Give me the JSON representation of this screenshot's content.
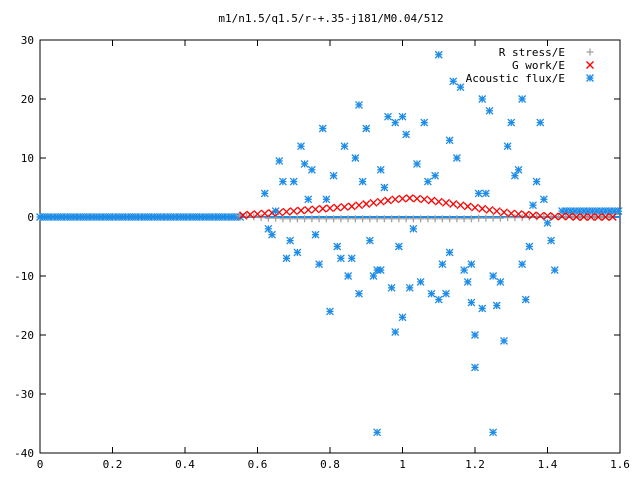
{
  "chart_data": {
    "type": "scatter",
    "title": "m1/n1.5/q1.5/r-+.35-j181/M0.04/512",
    "xlabel": "",
    "ylabel": "",
    "xlim": [
      0,
      1.6
    ],
    "ylim": [
      -40,
      30
    ],
    "xticks": [
      "0",
      "0.2",
      "0.4",
      "0.6",
      "0.8",
      "1",
      "1.2",
      "1.4",
      "1.6"
    ],
    "yticks": [
      "30",
      "20",
      "10",
      "0",
      "-10",
      "-20",
      "-30",
      "-40"
    ],
    "legend_position": "top-right",
    "series": [
      {
        "name": "R stress/E",
        "marker": "+",
        "color": "#a0a0a0",
        "x": [
          0.55,
          0.57,
          0.59,
          0.61,
          0.63,
          0.65,
          0.67,
          0.69,
          0.71,
          0.73,
          0.75,
          0.77,
          0.79,
          0.81,
          0.83,
          0.85,
          0.87,
          0.89,
          0.91,
          0.93,
          0.95,
          0.97,
          0.99,
          1.01,
          1.03,
          1.05,
          1.07,
          1.09,
          1.11,
          1.13,
          1.15,
          1.17,
          1.19,
          1.21,
          1.23,
          1.25,
          1.27,
          1.29,
          1.31,
          1.33,
          1.35,
          1.37,
          1.39,
          1.41,
          1.43,
          1.45,
          1.47,
          1.49,
          1.51,
          1.53,
          1.55,
          1.57
        ],
        "y": [
          0.2,
          0.1,
          0,
          -0.1,
          -0.2,
          -0.2,
          -0.3,
          -0.3,
          -0.3,
          -0.3,
          -0.3,
          -0.3,
          -0.3,
          -0.3,
          -0.3,
          -0.3,
          -0.3,
          -0.3,
          -0.3,
          -0.3,
          -0.3,
          -0.3,
          -0.3,
          -0.3,
          -0.3,
          -0.3,
          -0.3,
          -0.3,
          -0.3,
          -0.3,
          -0.3,
          -0.3,
          -0.3,
          -0.2,
          -0.2,
          -0.2,
          -0.2,
          -0.1,
          -0.1,
          -0.1,
          0,
          0,
          0,
          0,
          0,
          0,
          0,
          0,
          0,
          0,
          0,
          0
        ]
      },
      {
        "name": "G work/E",
        "marker": "x",
        "color": "#ff0000",
        "x": [
          0.56,
          0.58,
          0.6,
          0.62,
          0.64,
          0.66,
          0.68,
          0.7,
          0.72,
          0.74,
          0.76,
          0.78,
          0.8,
          0.82,
          0.84,
          0.86,
          0.88,
          0.9,
          0.92,
          0.94,
          0.96,
          0.98,
          1.0,
          1.02,
          1.04,
          1.06,
          1.08,
          1.1,
          1.12,
          1.14,
          1.16,
          1.18,
          1.2,
          1.22,
          1.24,
          1.26,
          1.28,
          1.3,
          1.32,
          1.34,
          1.36,
          1.38,
          1.4,
          1.42,
          1.44,
          1.46,
          1.48,
          1.5,
          1.52,
          1.54,
          1.56,
          1.58
        ],
        "y": [
          0.3,
          0.4,
          0.5,
          0.6,
          0.7,
          0.8,
          0.9,
          1.0,
          1.1,
          1.2,
          1.3,
          1.4,
          1.5,
          1.6,
          1.7,
          1.8,
          2.0,
          2.2,
          2.4,
          2.6,
          2.8,
          3.0,
          3.1,
          3.2,
          3.1,
          3.0,
          2.8,
          2.6,
          2.4,
          2.2,
          2.0,
          1.8,
          1.6,
          1.4,
          1.2,
          1.0,
          0.8,
          0.6,
          0.5,
          0.4,
          0.3,
          0.2,
          0.2,
          0.1,
          0.1,
          0.1,
          0,
          0,
          0,
          0,
          0,
          0
        ]
      },
      {
        "name": "Acoustic flux/E",
        "marker": "*",
        "color": "#1e8ce6",
        "x": [
          0.62,
          0.66,
          0.7,
          0.74,
          0.78,
          0.82,
          0.86,
          0.9,
          0.94,
          0.98,
          1.02,
          1.06,
          1.1,
          1.14,
          1.18,
          1.22,
          1.26,
          1.3,
          1.34,
          1.38,
          1.42,
          0.64,
          0.68,
          0.72,
          0.76,
          0.8,
          0.84,
          0.88,
          0.92,
          0.96,
          1.0,
          1.04,
          1.08,
          1.12,
          1.16,
          1.2,
          1.24,
          1.28,
          1.32,
          1.36,
          1.4,
          0.63,
          0.67,
          0.71,
          0.75,
          0.79,
          0.83,
          0.87,
          0.91,
          0.95,
          0.99,
          1.03,
          1.07,
          1.11,
          1.15,
          1.19,
          1.23,
          1.27,
          1.31,
          1.35,
          1.39,
          0.65,
          0.69,
          0.73,
          0.77,
          0.81,
          0.85,
          0.89,
          0.93,
          0.97,
          1.01,
          1.05,
          1.09,
          1.13,
          1.17,
          1.21,
          1.25,
          1.29,
          1.33,
          1.37,
          1.41,
          0.88,
          0.94,
          1.0,
          1.1,
          1.2,
          1.25,
          0.93,
          0.98,
          1.13,
          1.19,
          1.22,
          1.33
        ],
        "y": [
          4,
          9.5,
          6,
          3,
          15,
          -5,
          -7,
          15,
          -9,
          16,
          -12,
          16,
          -14,
          23,
          -11,
          20,
          -15,
          16,
          -14,
          16,
          -9,
          -3,
          -7,
          12,
          -3,
          -16,
          12,
          -13,
          -10,
          17,
          -17,
          9,
          -13,
          -13,
          22,
          -20,
          18,
          -21,
          8,
          2,
          -1,
          -2,
          6,
          -6,
          8,
          3,
          -7,
          10,
          -4,
          5,
          -5,
          -2,
          6,
          -8,
          10,
          -8,
          4,
          -11,
          7,
          -5,
          3,
          1,
          -4,
          9,
          -8,
          7,
          -10,
          6,
          -9,
          -12,
          14,
          -11,
          7,
          -6,
          -9,
          4,
          -10,
          12,
          -8,
          6,
          -4,
          19,
          8,
          17,
          27.5,
          -25.5,
          -36.5,
          -36.5,
          -19.5,
          13,
          -14.5,
          -15.5,
          20
        ]
      }
    ]
  }
}
